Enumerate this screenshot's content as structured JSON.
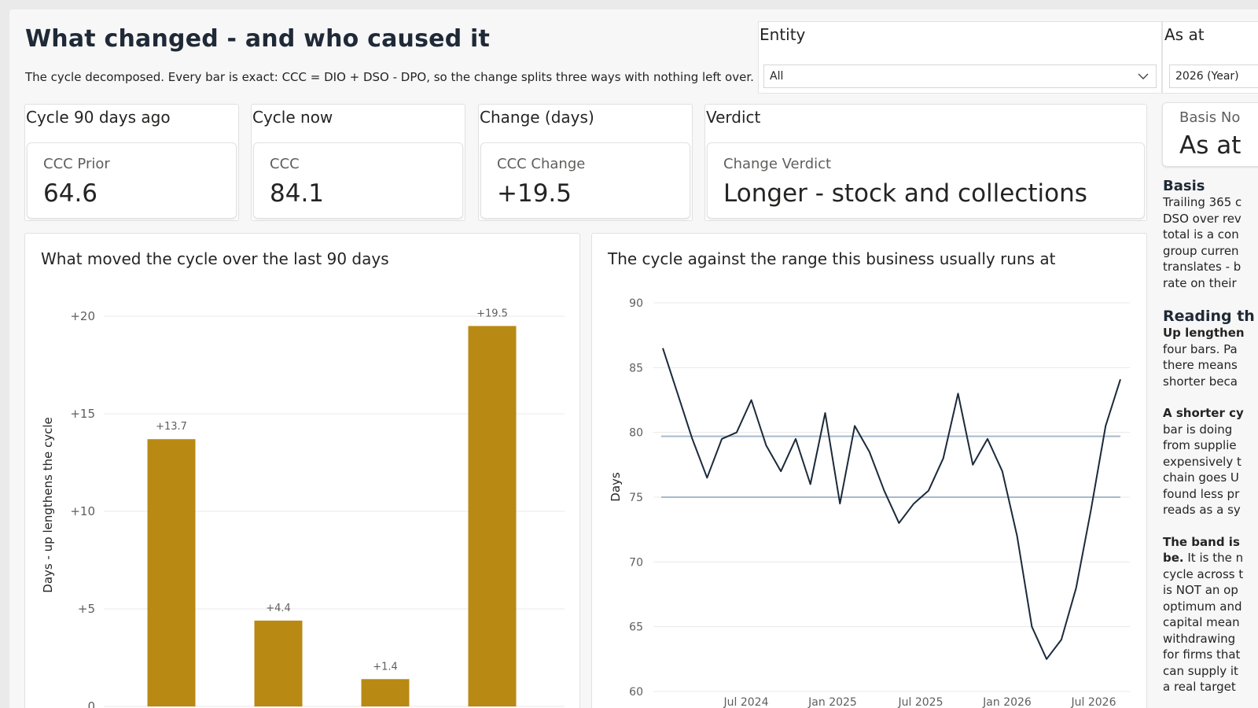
{
  "header": {
    "title": "What changed - and who caused it",
    "subtitle": "The cycle decomposed. Every bar is exact: CCC = DIO + DSO - DPO, so the change splits three ways with nothing left over."
  },
  "slicers": {
    "entity": {
      "label": "Entity",
      "value": "All"
    },
    "as_at": {
      "label": "As at",
      "value": "2026 (Year)"
    }
  },
  "cards": [
    {
      "title": "Cycle 90 days ago",
      "label": "CCC Prior",
      "value": "64.6"
    },
    {
      "title": "Cycle now",
      "label": "CCC",
      "value": "84.1"
    },
    {
      "title": "Change (days)",
      "label": "CCC Change",
      "value": "+19.5"
    },
    {
      "title": "Verdict",
      "label": "Change Verdict",
      "value": "Longer - stock and collections"
    }
  ],
  "basis_card": {
    "label": "Basis No",
    "value": "As at"
  },
  "side_panel": {
    "basis_heading": "Basis",
    "basis_lines": [
      "Trailing 365 c",
      "DSO over rev",
      "total is a con",
      "group curren",
      "translates - b",
      "rate on their"
    ],
    "reading_heading": "Reading th",
    "reading_p1_bold": "Up lengthen",
    "reading_p1_lines": [
      "four bars. Pa",
      "there means",
      "shorter beca"
    ],
    "reading_p2_bold": "A shorter cy",
    "reading_p2_lines": [
      "bar is doing",
      "from supplie",
      "expensively t",
      "chain goes U",
      "found less pr",
      "reads as a sy"
    ],
    "reading_p3_bold1": "The band is",
    "reading_p3_bold2": "be.",
    "reading_p3_first": " It is the n",
    "reading_p3_lines": [
      "cycle across t",
      "is NOT an op",
      "optimum and",
      "capital mean",
      "withdrawing",
      "for firms that",
      "can supply it",
      "a real target"
    ]
  },
  "colors": {
    "bar": "#b88a14",
    "line": "#1b2a3a",
    "band": "#a9b9cb",
    "grid": "#e8e8e8"
  },
  "chart_data": [
    {
      "type": "bar",
      "title": "What moved the cycle over the last 90 days",
      "ylabel": "Days - up lengthens the cycle",
      "ylim": [
        0,
        21
      ],
      "yticks": [
        0,
        5,
        10,
        15,
        20
      ],
      "ytick_labels": [
        "0",
        "+5",
        "+10",
        "+15",
        "+20"
      ],
      "categories": [
        "",
        "",
        "",
        ""
      ],
      "values": [
        13.7,
        4.4,
        1.4,
        19.5
      ],
      "data_labels": [
        "+13.7",
        "+4.4",
        "+1.4",
        "+19.5"
      ],
      "grid": true
    },
    {
      "type": "line",
      "title": "The cycle against the range this business usually runs at",
      "ylabel": "Days",
      "ylim": [
        60,
        90
      ],
      "yticks": [
        60,
        65,
        70,
        75,
        80,
        85,
        90
      ],
      "xticks": [
        "Jul 2024",
        "Jan 2025",
        "Jul 2025",
        "Jan 2026",
        "Jul 2026"
      ],
      "band": [
        75.0,
        79.7
      ],
      "x": [
        "2024-01",
        "2024-02",
        "2024-03",
        "2024-04",
        "2024-05",
        "2024-06",
        "2024-07",
        "2024-08",
        "2024-09",
        "2024-10",
        "2024-11",
        "2024-12",
        "2025-01",
        "2025-02",
        "2025-03",
        "2025-04",
        "2025-05",
        "2025-06",
        "2025-07",
        "2025-08",
        "2025-09",
        "2025-10",
        "2025-11",
        "2025-12",
        "2026-01",
        "2026-02",
        "2026-03",
        "2026-04",
        "2026-05",
        "2026-06",
        "2026-07",
        "2026-08"
      ],
      "values": [
        86.5,
        83.0,
        79.5,
        76.5,
        79.5,
        80.0,
        82.5,
        79.0,
        77.0,
        79.5,
        76.0,
        81.5,
        74.5,
        80.5,
        78.5,
        75.5,
        73.0,
        74.5,
        75.5,
        78.0,
        83.0,
        77.5,
        79.5,
        77.0,
        72.0,
        65.0,
        62.5,
        64.0,
        68.0,
        74.0,
        80.5,
        84.1
      ],
      "grid": true
    }
  ]
}
